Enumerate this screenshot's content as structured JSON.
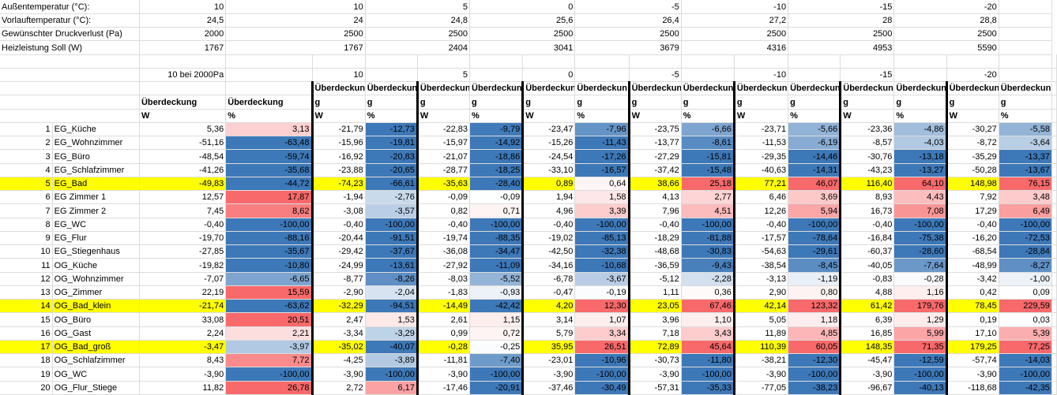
{
  "params": [
    {
      "label": "Außentemperatur (°C):",
      "values": [
        "10",
        "10",
        "5",
        "0",
        "-5",
        "-10",
        "-15",
        "-20"
      ]
    },
    {
      "label": "Vorlauftemperatur (°C):",
      "values": [
        "24,5",
        "24",
        "24,8",
        "25,6",
        "26,4",
        "27,2",
        "28",
        "28,8"
      ]
    },
    {
      "label": "Gewünschter Druckverlust (Pa)",
      "values": [
        "2000",
        "2500",
        "2500",
        "2500",
        "2500",
        "2500",
        "2500",
        "2500"
      ]
    },
    {
      "label": "Heizleistung Soll (W)",
      "values": [
        "1767",
        "1767",
        "2404",
        "3041",
        "3679",
        "4316",
        "4953",
        "5590"
      ]
    }
  ],
  "group_header": {
    "first": "10 bei 2000Pa",
    "temps": [
      "10",
      "5",
      "0",
      "-5",
      "-10",
      "-15",
      "-20"
    ]
  },
  "col_header": {
    "first_w": "Überdeckung",
    "first_pct": "Überdeckung",
    "unit_w": "W",
    "unit_pct": "%",
    "trunc_top": "Überdeckun",
    "trunc_bottom": "g"
  },
  "rooms": [
    {
      "n": "1",
      "name": "EG_Küche",
      "v": [
        "5,36",
        "3,13",
        "-21,79",
        "-12,73",
        "-22,83",
        "-9,79",
        "-23,47",
        "-7,96",
        "-23,75",
        "-6,66",
        "-23,71",
        "-5,66",
        "-23,36",
        "-4,86",
        "-30,27",
        "-5,58"
      ]
    },
    {
      "n": "2",
      "name": "EG_Wohnzimmer",
      "v": [
        "-51,16",
        "-63,48",
        "-15,96",
        "-19,81",
        "-15,97",
        "-14,92",
        "-15,26",
        "-11,43",
        "-13,77",
        "-8,61",
        "-11,53",
        "-6,19",
        "-8,57",
        "-4,03",
        "-8,72",
        "-3,64"
      ]
    },
    {
      "n": "3",
      "name": "EG_Büro",
      "v": [
        "-48,54",
        "-59,74",
        "-16,92",
        "-20,83",
        "-21,07",
        "-18,86",
        "-24,54",
        "-17,26",
        "-27,29",
        "-15,81",
        "-29,35",
        "-14,46",
        "-30,76",
        "-13,18",
        "-35,29",
        "-13,37"
      ]
    },
    {
      "n": "4",
      "name": "EG_Schlafzimmer",
      "v": [
        "-41,26",
        "-35,68",
        "-23,88",
        "-20,65",
        "-28,77",
        "-18,25",
        "-33,10",
        "-16,57",
        "-37,42",
        "-15,48",
        "-40,63",
        "-14,31",
        "-43,23",
        "-13,27",
        "-50,28",
        "-13,67"
      ]
    },
    {
      "n": "5",
      "name": "EG_Bad",
      "hl": true,
      "v": [
        "-49,83",
        "-44,72",
        "-74,23",
        "-66,61",
        "-35,63",
        "-28,40",
        "0,89",
        "0,64",
        "38,66",
        "25,18",
        "77,21",
        "46,07",
        "116,40",
        "64,10",
        "148,98",
        "76,15"
      ]
    },
    {
      "n": "6",
      "name": "EG Zimmer 1",
      "v": [
        "12,57",
        "17,87",
        "-1,94",
        "-2,76",
        "-0,09",
        "-0,09",
        "1,94",
        "1,58",
        "4,13",
        "2,77",
        "6,46",
        "3,69",
        "8,93",
        "4,43",
        "7,92",
        "3,48"
      ]
    },
    {
      "n": "7",
      "name": "EG Zimmer 2",
      "v": [
        "7,45",
        "8,62",
        "-3,08",
        "-3,57",
        "0,82",
        "0,71",
        "4,96",
        "3,39",
        "7,96",
        "4,51",
        "12,26",
        "5,94",
        "16,73",
        "7,08",
        "17,29",
        "6,49"
      ]
    },
    {
      "n": "8",
      "name": "EG_WC",
      "v": [
        "-0,40",
        "-100,00",
        "-0,40",
        "-100,00",
        "-0,40",
        "-100,00",
        "-0,40",
        "-100,00",
        "-0,40",
        "-100,00",
        "-0,40",
        "-100,00",
        "-0,40",
        "-100,00",
        "-0,40",
        "-100,00"
      ]
    },
    {
      "n": "9",
      "name": "EG_Flur",
      "v": [
        "-19,70",
        "-88,16",
        "-20,44",
        "-91,51",
        "-19,74",
        "-88,35",
        "-19,02",
        "-85,13",
        "-18,29",
        "-81,88",
        "-17,57",
        "-78,64",
        "-16,84",
        "-75,38",
        "-16,20",
        "-72,53"
      ]
    },
    {
      "n": "10",
      "name": "EG_Stiegenhaus",
      "v": [
        "-27,85",
        "-35,67",
        "-29,42",
        "-37,67",
        "-36,08",
        "-34,47",
        "-42,50",
        "-32,38",
        "-48,68",
        "-30,83",
        "-54,63",
        "-29,61",
        "-60,37",
        "-28,60",
        "-68,54",
        "-28,84"
      ]
    },
    {
      "n": "11",
      "name": "OG_Küche",
      "v": [
        "-19,82",
        "-10,80",
        "-24,99",
        "-13,61",
        "-27,92",
        "-11,09",
        "-34,16",
        "-10,68",
        "-36,59",
        "-9,43",
        "-38,54",
        "-8,45",
        "-40,05",
        "-7,64",
        "-48,99",
        "-8,27"
      ]
    },
    {
      "n": "12",
      "name": "OG_Wohnzimmer",
      "v": [
        "-7,07",
        "-6,65",
        "-8,77",
        "-8,26",
        "-8,03",
        "-5,52",
        "-6,78",
        "-3,67",
        "-5,12",
        "-2,28",
        "-3,13",
        "-1,19",
        "-0,83",
        "-0,28",
        "-3,42",
        "-1,00"
      ]
    },
    {
      "n": "13",
      "name": "OG_Zimmer",
      "v": [
        "22,19",
        "15,59",
        "-2,90",
        "-2,04",
        "-1,83",
        "-0,93",
        "-0,47",
        "-0,19",
        "1,11",
        "0,36",
        "2,90",
        "0,80",
        "4,88",
        "1,16",
        "0,42",
        "0,09"
      ]
    },
    {
      "n": "14",
      "name": "OG_Bad_klein",
      "hl": true,
      "v": [
        "-21,74",
        "-63,62",
        "-32,29",
        "-94,51",
        "-14,49",
        "-42,42",
        "4,20",
        "12,30",
        "23,05",
        "67,46",
        "42,14",
        "123,32",
        "61,42",
        "179,76",
        "78,45",
        "229,59"
      ]
    },
    {
      "n": "15",
      "name": "OG_Büro",
      "v": [
        "33,08",
        "20,51",
        "2,47",
        "1,53",
        "2,61",
        "1,15",
        "3,14",
        "1,07",
        "3,96",
        "1,10",
        "5,05",
        "1,18",
        "6,39",
        "1,29",
        "0,19",
        "0,03"
      ]
    },
    {
      "n": "16",
      "name": "OG_Gast",
      "v": [
        "2,24",
        "2,21",
        "-3,34",
        "-3,29",
        "0,99",
        "0,72",
        "5,79",
        "3,34",
        "7,18",
        "3,43",
        "11,89",
        "4,85",
        "16,85",
        "5,99",
        "17,10",
        "5,39"
      ]
    },
    {
      "n": "17",
      "name": "OG_Bad_groß",
      "hl": true,
      "v": [
        "-3,47",
        "-3,97",
        "-35,02",
        "-40,07",
        "-0,28",
        "-0,25",
        "35,95",
        "26,51",
        "72,89",
        "45,64",
        "110,39",
        "60,05",
        "148,35",
        "71,35",
        "179,25",
        "77,25"
      ]
    },
    {
      "n": "18",
      "name": "OG_Schlafzimmer",
      "v": [
        "8,43",
        "7,72",
        "-4,25",
        "-3,89",
        "-11,81",
        "-7,40",
        "-23,01",
        "-10,96",
        "-30,73",
        "-11,80",
        "-38,21",
        "-12,30",
        "-45,47",
        "-12,59",
        "-57,74",
        "-14,03"
      ]
    },
    {
      "n": "19",
      "name": "OG_WC",
      "v": [
        "-3,90",
        "-100,00",
        "-3,90",
        "-100,00",
        "-3,90",
        "-100,00",
        "-3,90",
        "-100,00",
        "-3,90",
        "-100,00",
        "-3,90",
        "-100,00",
        "-3,90",
        "-100,00",
        "-3,90",
        "-100,00"
      ]
    },
    {
      "n": "20",
      "name": "OG_Flur_Stiege",
      "v": [
        "11,82",
        "26,78",
        "2,72",
        "6,17",
        "-17,46",
        "-20,91",
        "-37,46",
        "-30,49",
        "-57,31",
        "-35,33",
        "-77,05",
        "-38,23",
        "-96,67",
        "-40,13",
        "-118,68",
        "-42,35"
      ]
    }
  ],
  "colors": {
    "highlight": "#ffff00",
    "negative": "#3d78b8",
    "positive": "#f8696b",
    "neutral": "#ffffff"
  }
}
